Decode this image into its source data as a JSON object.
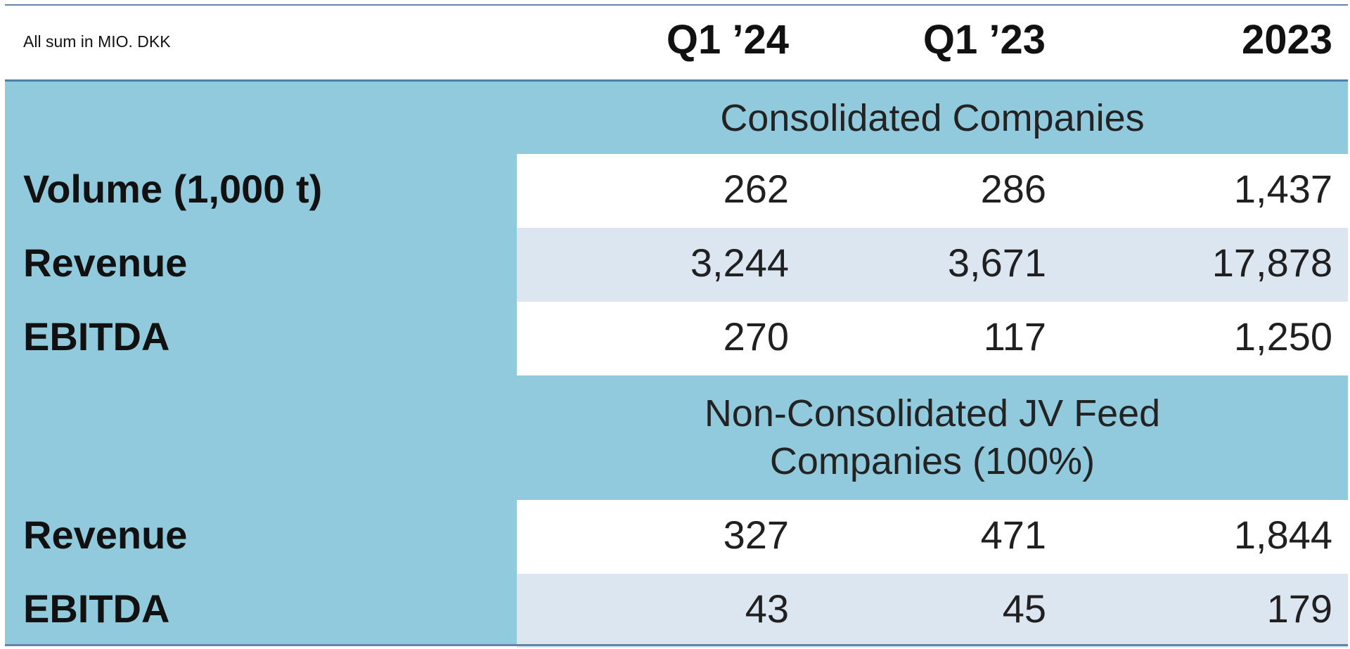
{
  "header": {
    "note": "All sum in MIO. DKK",
    "columns": [
      "Q1 ’24",
      "Q1 ’23",
      "2023"
    ]
  },
  "sections": [
    {
      "title": "Consolidated Companies",
      "rows": [
        {
          "label": "Volume (1,000 t)",
          "values": [
            "262",
            "286",
            "1,437"
          ],
          "shade": "white"
        },
        {
          "label": "Revenue",
          "values": [
            "3,244",
            "3,671",
            "17,878"
          ],
          "shade": "blue"
        },
        {
          "label": "EBITDA",
          "values": [
            "270",
            "117",
            "1,250"
          ],
          "shade": "white"
        }
      ]
    },
    {
      "title": "Non-Consolidated JV Feed Companies (100%)",
      "title_line_1": "Non-Consolidated JV Feed",
      "title_line_2": "Companies (100%)",
      "rows": [
        {
          "label": "Revenue",
          "values": [
            "327",
            "471",
            "1,844"
          ],
          "shade": "white"
        },
        {
          "label": "EBITDA",
          "values": [
            "43",
            "45",
            "179"
          ],
          "shade": "blue"
        }
      ]
    }
  ],
  "colors": {
    "label_column": "#92cadd",
    "alt_row": "#dce6f1",
    "rule": "#4f7fa4"
  }
}
